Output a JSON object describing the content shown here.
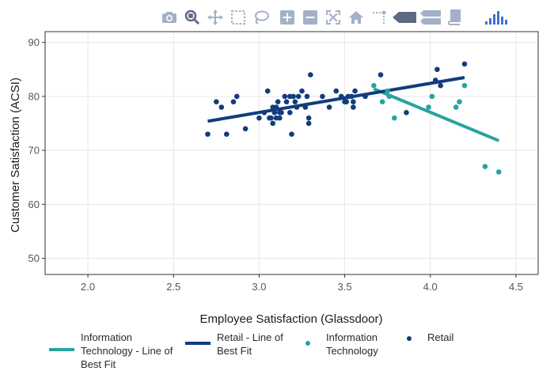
{
  "modebar": {
    "buttons": [
      {
        "name": "camera-icon",
        "label": "Download plot as a png"
      },
      {
        "name": "zoom-icon",
        "label": "Zoom"
      },
      {
        "name": "pan-icon",
        "label": "Pan"
      },
      {
        "name": "box-select-icon",
        "label": "Box Select"
      },
      {
        "name": "lasso-select-icon",
        "label": "Lasso Select"
      },
      {
        "name": "zoom-in-icon",
        "label": "Zoom in"
      },
      {
        "name": "zoom-out-icon",
        "label": "Zoom out"
      },
      {
        "name": "autoscale-icon",
        "label": "Autoscale"
      },
      {
        "name": "home-icon",
        "label": "Reset axes"
      },
      {
        "name": "spike-lines-icon",
        "label": "Toggle Spike Lines"
      },
      {
        "name": "hover-closest-icon",
        "label": "Show closest data on hover"
      },
      {
        "name": "hover-compare-icon",
        "label": "Compare data on hover"
      },
      {
        "name": "book-icon",
        "label": "Toggle show data"
      },
      {
        "name": "plotly-logo-icon",
        "label": "Produced with Plotly"
      }
    ]
  },
  "legend": {
    "items": [
      {
        "label_lines": [
          "Information",
          "Technology - Line of",
          "Best Fit"
        ],
        "kind": "line",
        "color": "#26a39f"
      },
      {
        "label_lines": [
          "Retail - Line of",
          "Best Fit"
        ],
        "kind": "line",
        "color": "#123c7e"
      },
      {
        "label_lines": [
          "Information",
          "Technology"
        ],
        "kind": "marker",
        "color": "#26a39f"
      },
      {
        "label_lines": [
          "Retail"
        ],
        "kind": "marker",
        "color": "#123c7e"
      }
    ]
  },
  "chart_data": {
    "type": "scatter",
    "title": "",
    "xlabel": "Employee Satisfaction (Glassdoor)",
    "ylabel": "Customer Satisfaction (ACSI)",
    "xlim": [
      1.75,
      4.63
    ],
    "ylim": [
      47,
      92
    ],
    "xticks": [
      2.0,
      2.5,
      3.0,
      3.5,
      4.0,
      4.5
    ],
    "xtick_labels": [
      "2.0",
      "2.5",
      "3.0",
      "3.5",
      "4.0",
      "4.5"
    ],
    "yticks": [
      50,
      60,
      70,
      80,
      90
    ],
    "ytick_labels": [
      "50",
      "60",
      "70",
      "80",
      "90"
    ],
    "grid": true,
    "legend_position": "bottom",
    "colors": {
      "it": "#26a39f",
      "retail": "#123c7e",
      "grid": "#e6e6e6",
      "axis": "#333333"
    },
    "series": [
      {
        "name": "Information Technology",
        "mode": "markers",
        "color": "#26a39f",
        "x": [
          3.67,
          3.72,
          3.75,
          3.76,
          3.79,
          3.99,
          4.01,
          4.15,
          4.17,
          4.2,
          4.32,
          4.4
        ],
        "y": [
          82,
          79,
          81,
          80,
          76,
          78,
          80,
          78,
          79,
          82,
          67,
          66
        ]
      },
      {
        "name": "Retail",
        "mode": "markers",
        "color": "#123c7e",
        "x": [
          2.7,
          2.75,
          2.78,
          2.81,
          2.85,
          2.87,
          2.92,
          3.0,
          3.03,
          3.05,
          3.06,
          3.07,
          3.08,
          3.08,
          3.09,
          3.1,
          3.1,
          3.11,
          3.12,
          3.12,
          3.13,
          3.15,
          3.16,
          3.18,
          3.18,
          3.19,
          3.2,
          3.21,
          3.22,
          3.23,
          3.25,
          3.27,
          3.28,
          3.29,
          3.29,
          3.3,
          3.37,
          3.41,
          3.45,
          3.48,
          3.5,
          3.51,
          3.52,
          3.54,
          3.55,
          3.55,
          3.56,
          3.62,
          3.71,
          3.86,
          4.03,
          4.04,
          4.06,
          4.2
        ],
        "y": [
          73,
          79,
          78,
          73,
          79,
          80,
          74,
          76,
          77,
          81,
          76,
          76,
          75,
          78,
          77,
          76,
          78,
          79,
          77,
          76,
          77,
          80,
          79,
          80,
          77,
          73,
          80,
          79,
          78,
          80,
          81,
          78,
          80,
          76,
          75,
          84,
          80,
          78,
          81,
          80,
          79,
          79,
          80,
          80,
          79,
          78,
          81,
          80,
          84,
          77,
          83,
          85,
          82,
          86
        ]
      },
      {
        "name": "Information Technology - Line of Best Fit",
        "mode": "lines",
        "color": "#26a39f",
        "x": [
          3.67,
          4.4
        ],
        "y": [
          81.4,
          71.8
        ]
      },
      {
        "name": "Retail - Line of Best Fit",
        "mode": "lines",
        "color": "#123c7e",
        "x": [
          2.7,
          4.2
        ],
        "y": [
          75.4,
          83.5
        ]
      }
    ]
  }
}
